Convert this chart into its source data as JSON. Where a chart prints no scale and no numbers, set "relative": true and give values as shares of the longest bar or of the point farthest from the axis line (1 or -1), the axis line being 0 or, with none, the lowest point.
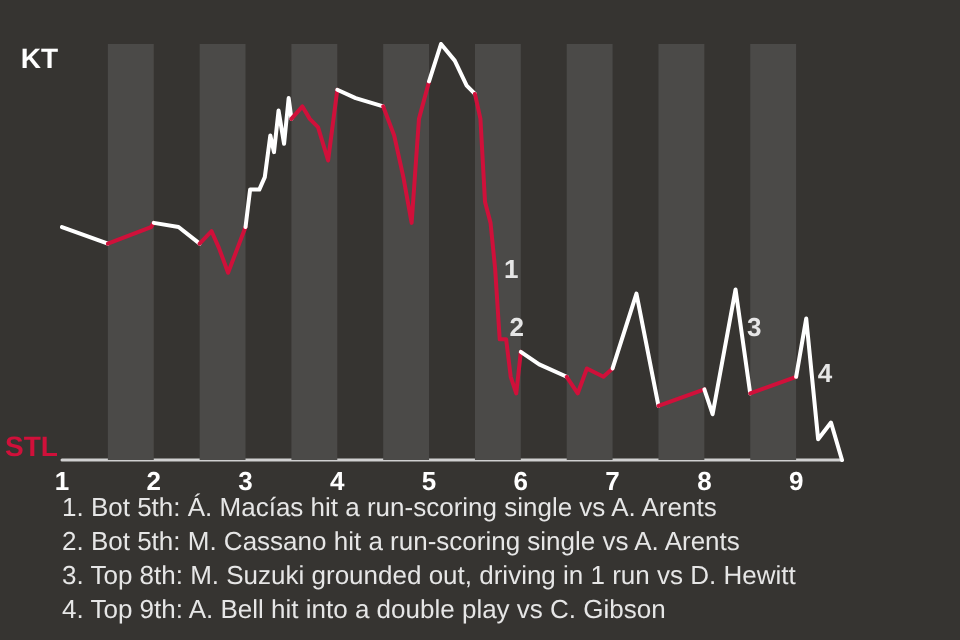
{
  "chart_data": {
    "type": "line",
    "relative": true,
    "xlim": [
      1,
      9.5
    ],
    "xticks": [
      1,
      2,
      3,
      4,
      5,
      6,
      7,
      8,
      9
    ],
    "marker": "none",
    "line_style": "solid",
    "series": [
      {
        "color": "#ffffff",
        "x": [
          1,
          1.5
        ],
        "values": [
          0.56,
          0.52
        ]
      },
      {
        "color": "#d0103a",
        "x": [
          1.5,
          1.97,
          2
        ],
        "values": [
          0.52,
          0.56,
          0.57
        ]
      },
      {
        "color": "#ffffff",
        "x": [
          2,
          2.27,
          2.5
        ],
        "values": [
          0.57,
          0.56,
          0.52
        ]
      },
      {
        "color": "#d0103a",
        "x": [
          2.5,
          2.63,
          2.71,
          2.81,
          3
        ],
        "values": [
          0.52,
          0.55,
          0.51,
          0.45,
          0.56
        ]
      },
      {
        "color": "#ffffff",
        "x": [
          3,
          3.05,
          3.15,
          3.21,
          3.27,
          3.31,
          3.36,
          3.42,
          3.47,
          3.5
        ],
        "values": [
          0.56,
          0.65,
          0.65,
          0.68,
          0.78,
          0.74,
          0.84,
          0.76,
          0.87,
          0.82
        ]
      },
      {
        "color": "#d0103a",
        "x": [
          3.5,
          3.62,
          3.7,
          3.79,
          3.9,
          4
        ],
        "values": [
          0.82,
          0.85,
          0.82,
          0.8,
          0.72,
          0.89
        ]
      },
      {
        "color": "#ffffff",
        "x": [
          4,
          4.2,
          4.5
        ],
        "values": [
          0.89,
          0.87,
          0.85
        ]
      },
      {
        "color": "#d0103a",
        "x": [
          4.5,
          4.62,
          4.72,
          4.81,
          4.89,
          5
        ],
        "values": [
          0.85,
          0.78,
          0.68,
          0.57,
          0.82,
          0.91
        ]
      },
      {
        "color": "#ffffff",
        "x": [
          5,
          5.13,
          5.28,
          5.41,
          5.5
        ],
        "values": [
          0.91,
          1,
          0.96,
          0.9,
          0.88
        ]
      },
      {
        "color": "#d0103a",
        "x": [
          5.5,
          5.56,
          5.61,
          5.67,
          5.72,
          5.77,
          5.84,
          5.89,
          5.95,
          6
        ],
        "values": [
          0.88,
          0.82,
          0.62,
          0.57,
          0.46,
          0.29,
          0.29,
          0.2,
          0.16,
          0.26
        ]
      },
      {
        "color": "#ffffff",
        "x": [
          6,
          6.2,
          6.5
        ],
        "values": [
          0.26,
          0.23,
          0.2
        ]
      },
      {
        "color": "#d0103a",
        "x": [
          6.5,
          6.62,
          6.72,
          6.9,
          7
        ],
        "values": [
          0.2,
          0.16,
          0.22,
          0.2,
          0.22
        ]
      },
      {
        "color": "#ffffff",
        "x": [
          7,
          7.26,
          7.5
        ],
        "values": [
          0.22,
          0.4,
          0.13
        ]
      },
      {
        "color": "#d0103a",
        "x": [
          7.5,
          8
        ],
        "values": [
          0.13,
          0.17
        ]
      },
      {
        "color": "#ffffff",
        "x": [
          8,
          8.09,
          8.34,
          8.5
        ],
        "values": [
          0.17,
          0.11,
          0.41,
          0.16
        ]
      },
      {
        "color": "#d0103a",
        "x": [
          8.5,
          9
        ],
        "values": [
          0.16,
          0.2
        ]
      },
      {
        "color": "#ffffff",
        "x": [
          9,
          9.11,
          9.24,
          9.38,
          9.5
        ],
        "values": [
          0.2,
          0.34,
          0.05,
          0.09,
          0
        ]
      }
    ],
    "bands": [
      {
        "axis": "x",
        "from": 1.5,
        "to": 2,
        "color": "#4b4a48"
      },
      {
        "axis": "x",
        "from": 2.5,
        "to": 3,
        "color": "#4b4a48"
      },
      {
        "axis": "x",
        "from": 3.5,
        "to": 4,
        "color": "#4b4a48"
      },
      {
        "axis": "x",
        "from": 4.5,
        "to": 5,
        "color": "#4b4a48"
      },
      {
        "axis": "x",
        "from": 5.5,
        "to": 6,
        "color": "#4b4a48"
      },
      {
        "axis": "x",
        "from": 6.5,
        "to": 7,
        "color": "#4b4a48"
      },
      {
        "axis": "x",
        "from": 7.5,
        "to": 8,
        "color": "#4b4a48"
      },
      {
        "axis": "x",
        "from": 8.5,
        "to": 9,
        "color": "#4b4a48"
      }
    ],
    "annotations": [
      "KT",
      "STL",
      {
        "text": "1",
        "x": 5.75,
        "y": 0.46
      },
      {
        "text": "2",
        "x": 5.81,
        "y": 0.32
      },
      {
        "text": "3",
        "x": 8.4,
        "y": 0.32
      },
      {
        "text": "4",
        "x": 9.17,
        "y": 0.21
      },
      "1. Bot 5th: Á. Macías hit a run-scoring single vs A. Arents",
      "2. Bot 5th: M. Cassano hit a run-scoring single vs A. Arents",
      "3. Top 8th: M. Suzuki grounded out, driving in 1 run vs D. Hewitt",
      "4. Top 9th: A. Bell hit into a double play vs C. Gibson"
    ]
  }
}
